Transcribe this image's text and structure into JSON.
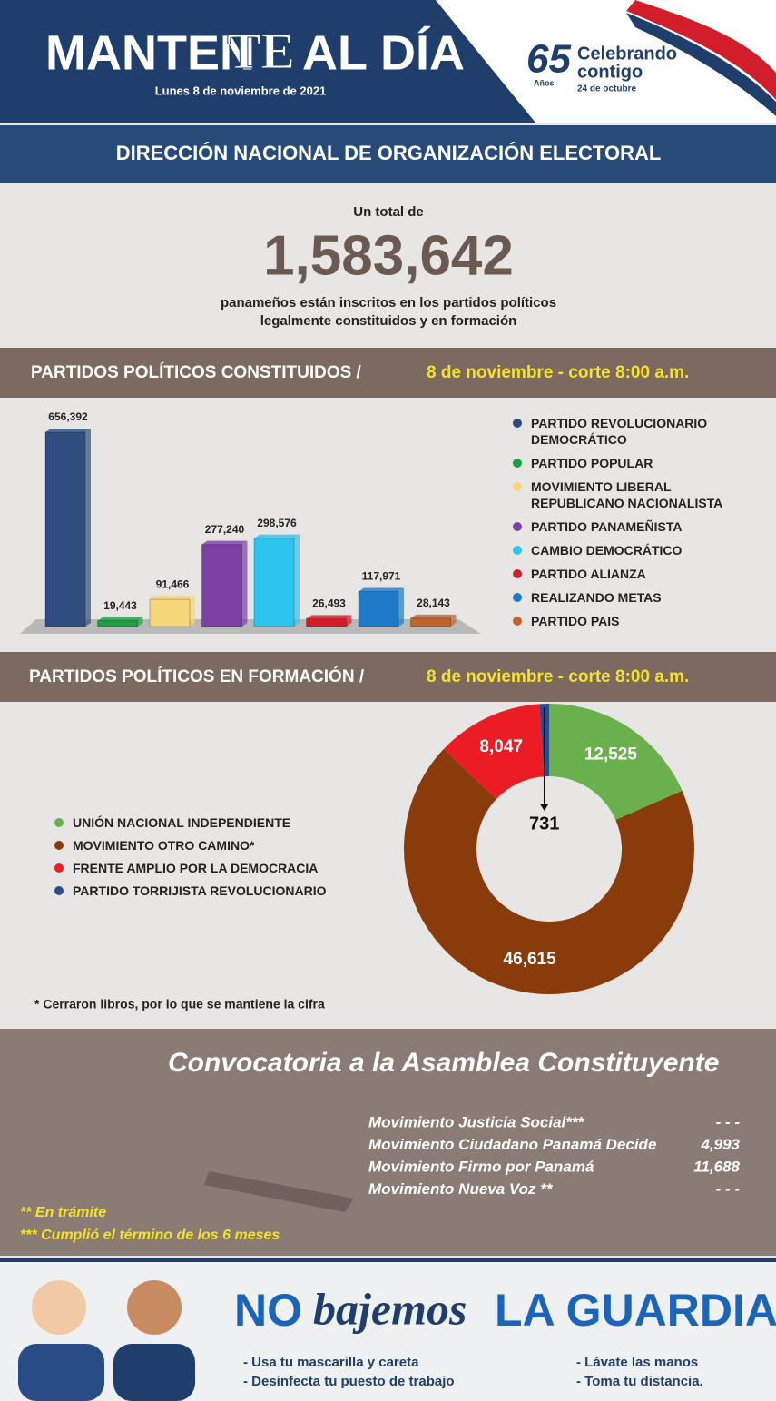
{
  "header": {
    "title": [
      "MANTEN",
      "TE",
      "AL DÍA"
    ],
    "date": "Lunes 8 de noviembre de 2021",
    "logo": {
      "number": "65",
      "years": "Años",
      "line1": "Celebrando",
      "line2": "contigo",
      "date": "24 de octubre"
    }
  },
  "banner": "DIRECCIÓN NACIONAL DE ORGANIZACIÓN ELECTORAL",
  "total": {
    "intro": "Un total de",
    "value": "1,583,642",
    "lines": [
      "panameños están inscritos en los partidos políticos",
      "legalmente constituidos y en formación"
    ]
  },
  "chart_data": [
    {
      "type": "bar",
      "title": "PARTIDOS POLÍTICOS CONSTITUIDOS /",
      "subtitle": "8 de noviembre - corte 8:00 a.m.",
      "categories": [
        "PARTIDO REVOLUCIONARIO DEMOCRÁTICO",
        "PARTIDO POPULAR",
        "MOVIMIENTO LIBERAL REPUBLICANO NACIONALISTA",
        "PARTIDO PANAMEÑISTA",
        "CAMBIO DEMOCRÁTICO",
        "PARTIDO ALIANZA",
        "REALIZANDO METAS",
        "PARTIDO PAIS"
      ],
      "values": [
        656392,
        19443,
        91466,
        277240,
        298576,
        26493,
        117971,
        28143
      ],
      "value_labels": [
        "656,392",
        "19,443",
        "91,466",
        "277,240",
        "298,576",
        "26,493",
        "117,971",
        "28,143"
      ],
      "colors": [
        "#2f4d7e",
        "#1e9e45",
        "#f6d77a",
        "#7b3fa6",
        "#2ec4f0",
        "#d21d2b",
        "#1f79c9",
        "#c0642c"
      ]
    },
    {
      "type": "pie",
      "title": "PARTIDOS POLÍTICOS EN FORMACIÓN /",
      "subtitle": "8 de noviembre - corte 8:00 a.m.",
      "categories": [
        "UNIÓN NACIONAL INDEPENDIENTE",
        "MOVIMIENTO OTRO CAMINO*",
        "FRENTE AMPLIO POR LA DEMOCRACIA",
        "PARTIDO TORRIJISTA REVOLUCIONARIO"
      ],
      "values": [
        12525,
        46615,
        8047,
        731
      ],
      "value_labels": [
        "12,525",
        "46,615",
        "8,047",
        "731"
      ],
      "colors": [
        "#6ab04c",
        "#8a3b0c",
        "#ec1c24",
        "#2c4a8c"
      ],
      "donut": true,
      "note": "* Cerraron libros, por lo que se mantiene la cifra"
    }
  ],
  "convocatoria": {
    "title": "Convocatoria a la Asamblea Constituyente",
    "rows": [
      [
        "Movimiento Justicia Social***",
        "- - -"
      ],
      [
        "Movimiento Ciudadano Panamá Decide",
        "4,993"
      ],
      [
        "Movimiento Firmo por Panamá",
        "11,688"
      ],
      [
        "Movimiento Nueva Voz **",
        "- - -"
      ]
    ],
    "notes": [
      "** En trámite",
      "*** Cumplió el término de los 6 meses"
    ]
  },
  "footer": {
    "slogan": [
      "NO",
      "bajemos",
      "LA GUARDIA"
    ],
    "tips": [
      "- Usa tu mascarilla y careta",
      "- Desinfecta tu puesto de trabajo",
      "- Lávate las manos",
      "- Toma tu distancia."
    ]
  }
}
